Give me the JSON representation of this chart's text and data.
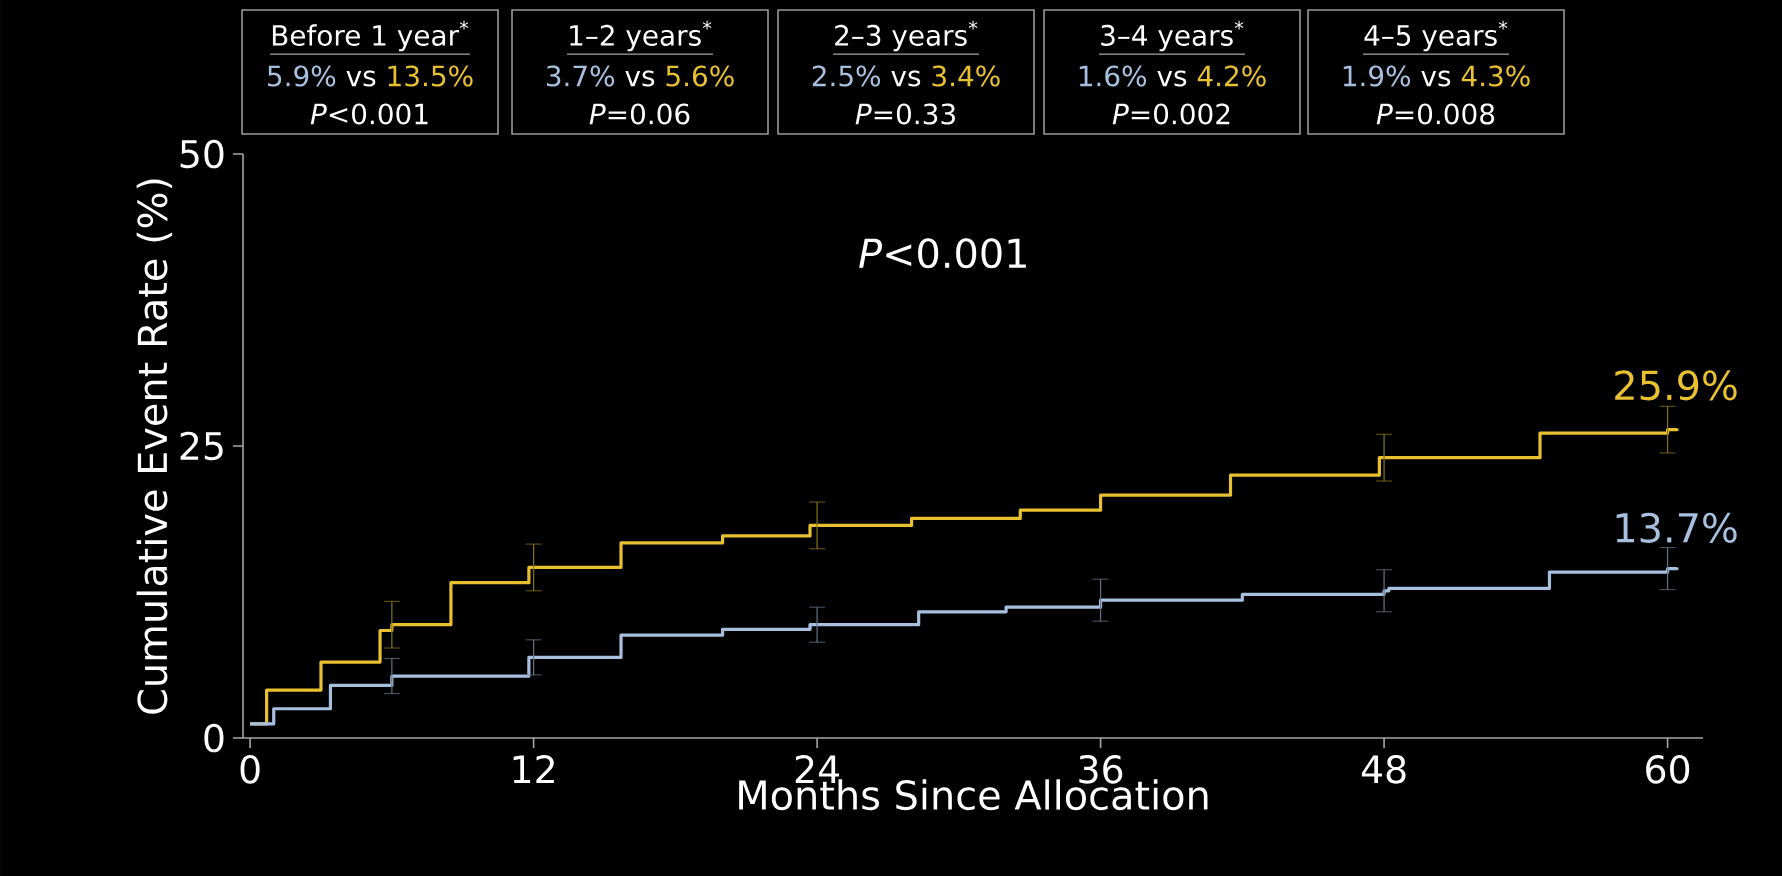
{
  "chart_data": {
    "type": "step",
    "xlabel": "Months Since Allocation",
    "ylabel": "Cumulative Event Rate (%)",
    "xlim": [
      -0.3,
      61.5
    ],
    "ylim": [
      0,
      50
    ],
    "xticks": [
      0,
      12,
      24,
      36,
      48,
      60
    ],
    "yticks": [
      0,
      25,
      50
    ],
    "grid": false,
    "series": [
      {
        "color": "#e8c030",
        "x": [
          0,
          0.7,
          3,
          5.5,
          6,
          8.5,
          11.8,
          12,
          15.7,
          20,
          23.7,
          24,
          28,
          32.6,
          36,
          41.5,
          47.8,
          48,
          54.6,
          60,
          60.4
        ],
        "values": [
          1.2,
          4.1,
          6.5,
          9.2,
          9.7,
          13.3,
          14.6,
          14.6,
          16.7,
          17.3,
          18.2,
          18.2,
          18.8,
          19.5,
          20.8,
          22.5,
          24.0,
          24.0,
          26.1,
          26.4,
          26.5
        ],
        "errors": [
          null,
          null,
          null,
          null,
          2,
          null,
          null,
          2,
          null,
          null,
          null,
          2,
          null,
          null,
          null,
          null,
          null,
          2,
          null,
          2,
          null
        ]
      },
      {
        "color": "#a8c0e0",
        "x": [
          0,
          1,
          3.4,
          6,
          11.8,
          12,
          15.7,
          20,
          23.7,
          24,
          28.3,
          32,
          36,
          42,
          48,
          48.2,
          55,
          60,
          60.4
        ],
        "values": [
          1.2,
          2.5,
          4.5,
          5.3,
          6.9,
          6.9,
          8.8,
          9.3,
          9.7,
          9.7,
          10.8,
          11.2,
          11.8,
          12.3,
          12.6,
          12.8,
          14.2,
          14.5,
          14.6
        ],
        "errors": [
          null,
          null,
          null,
          1.5,
          null,
          1.5,
          null,
          null,
          null,
          1.5,
          null,
          null,
          1.8,
          null,
          1.8,
          null,
          null,
          1.8,
          null
        ]
      }
    ],
    "annotations": [
      "Before 1 year$^{*}$",
      "5.9%",
      "vs",
      "13.5%",
      "*P*<0.001",
      "1–2 years$^{*}$",
      "3.7%",
      "vs",
      "5.6%",
      "*P*=0.06",
      "2–3 years$^{*}$",
      "2.5%",
      "vs",
      "3.4%",
      "*P*=0.33",
      "3–4 years$^{*}$",
      "1.6%",
      "vs",
      "4.2%",
      "*P*=0.002",
      "4–5 years$^{*}$",
      "1.9%",
      "vs",
      "4.3%",
      "*P*=0.008",
      "*P*<0.001",
      {
        "text": "25.9%",
        "x": 60,
        "y": 25.9
      },
      {
        "text": "13.7%",
        "x": 60,
        "y": 13.7
      }
    ]
  }
}
